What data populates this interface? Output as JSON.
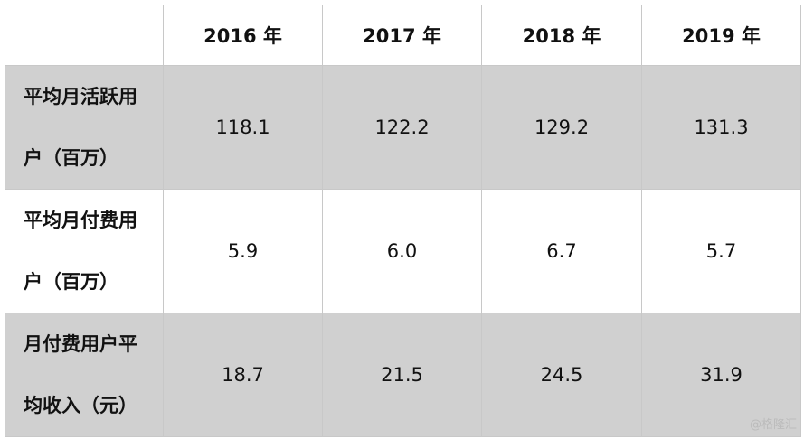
{
  "table": {
    "header": [
      "2016 年",
      "2017 年",
      "2018 年",
      "2019 年"
    ],
    "rows": [
      {
        "label": "平均月活跃用户（百万）",
        "values": [
          "118.1",
          "122.2",
          "129.2",
          "131.3"
        ]
      },
      {
        "label": "平均月付费用户（百万）",
        "values": [
          "5.9",
          "6.0",
          "6.7",
          "5.7"
        ]
      },
      {
        "label": "月付费用户平均收入（元）",
        "values": [
          "18.7",
          "21.5",
          "24.5",
          "31.9"
        ]
      }
    ]
  },
  "watermark": "@格隆汇"
}
